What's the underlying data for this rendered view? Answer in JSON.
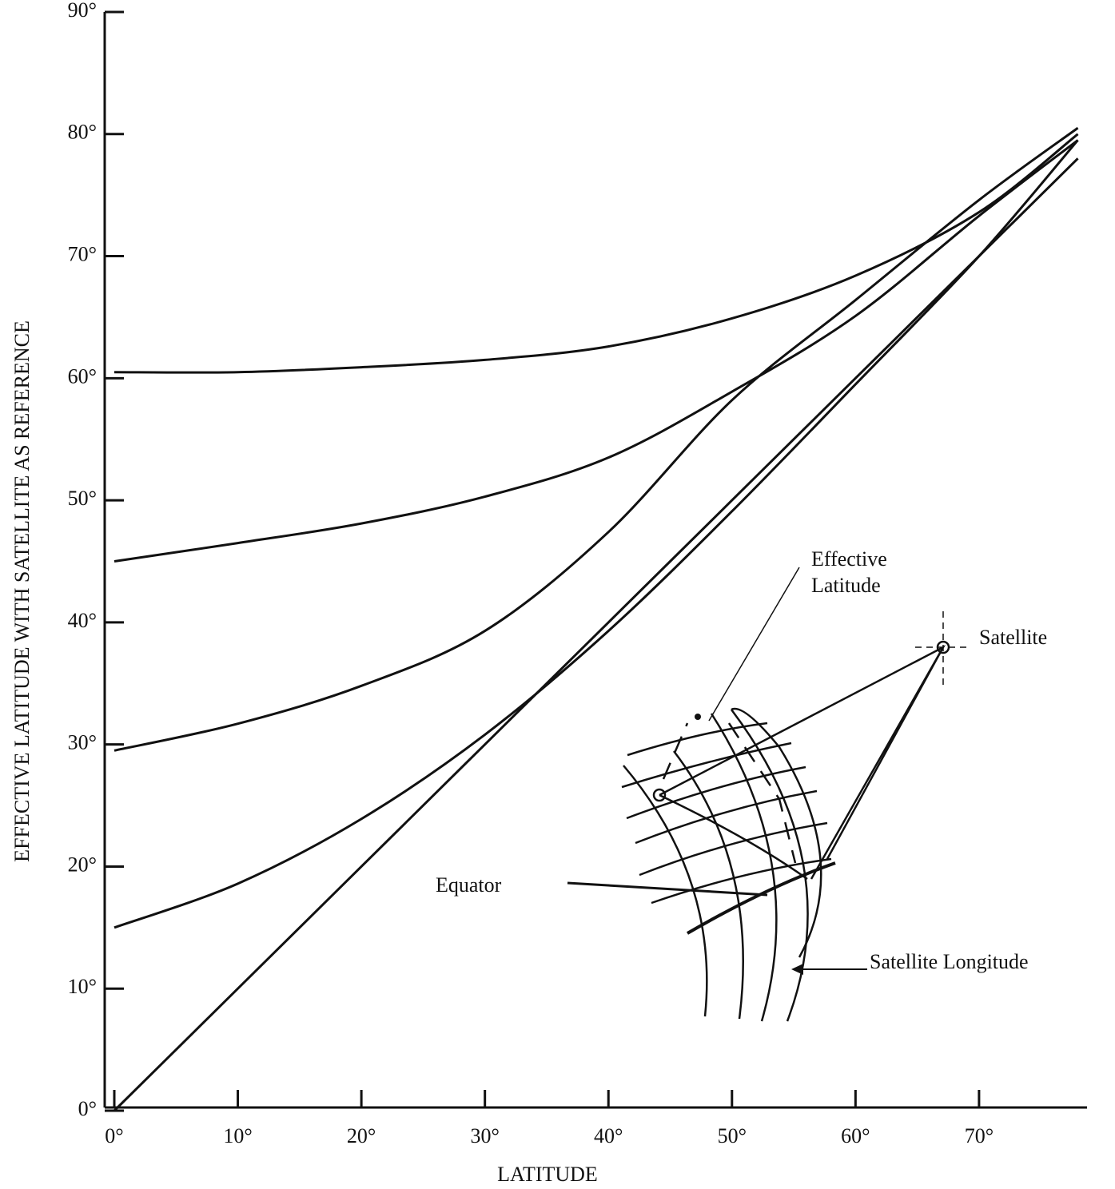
{
  "chart_data": {
    "type": "line",
    "x_label": "LATITUDE",
    "y_label": "EFFECTIVE LATITUDE WITH SATELLITE AS REFERENCE",
    "x": [
      0,
      10,
      20,
      30,
      40,
      50,
      60,
      70,
      78
    ],
    "series": [
      {
        "color": "#111111",
        "values": [
          0,
          10,
          20,
          30,
          40,
          50,
          60,
          70,
          78
        ]
      },
      {
        "color": "#111111",
        "values": [
          15,
          18.6,
          23.9,
          30.8,
          39.3,
          49.1,
          59.5,
          70,
          79.5
        ]
      },
      {
        "color": "#111111",
        "values": [
          29.5,
          31.7,
          34.8,
          39.3,
          47.4,
          58.2,
          66.4,
          74.6,
          80.5
        ]
      },
      {
        "color": "#111111",
        "values": [
          45,
          46.5,
          48.1,
          50.3,
          53.5,
          58.9,
          65.1,
          73.3,
          79.5
        ]
      },
      {
        "color": "#111111",
        "values": [
          60.5,
          60.5,
          60.9,
          61.5,
          62.6,
          64.9,
          68.4,
          73.6,
          80
        ]
      }
    ],
    "xlim": [
      0,
      79
    ],
    "ylim": [
      0,
      90
    ],
    "xticks": [
      {
        "value": 0,
        "label": "0°"
      },
      {
        "value": 10,
        "label": "10°"
      },
      {
        "value": 20,
        "label": "20°"
      },
      {
        "value": 30,
        "label": "30°"
      },
      {
        "value": 40,
        "label": "40°"
      },
      {
        "value": 50,
        "label": "50°"
      },
      {
        "value": 60,
        "label": "60°"
      },
      {
        "value": 70,
        "label": "70°"
      }
    ],
    "yticks": [
      {
        "value": 0,
        "label": "0°"
      },
      {
        "value": 10,
        "label": "10°"
      },
      {
        "value": 20,
        "label": "20°"
      },
      {
        "value": 30,
        "label": "30°"
      },
      {
        "value": 40,
        "label": "40°"
      },
      {
        "value": 50,
        "label": "50°"
      },
      {
        "value": 60,
        "label": "60°"
      },
      {
        "value": 70,
        "label": "70°"
      },
      {
        "value": 80,
        "label": "80°"
      },
      {
        "value": 90,
        "label": "90°"
      }
    ],
    "annotations": [
      "Effective",
      "Latitude",
      "Satellite",
      "Equator",
      "Satellite Longitude"
    ]
  }
}
